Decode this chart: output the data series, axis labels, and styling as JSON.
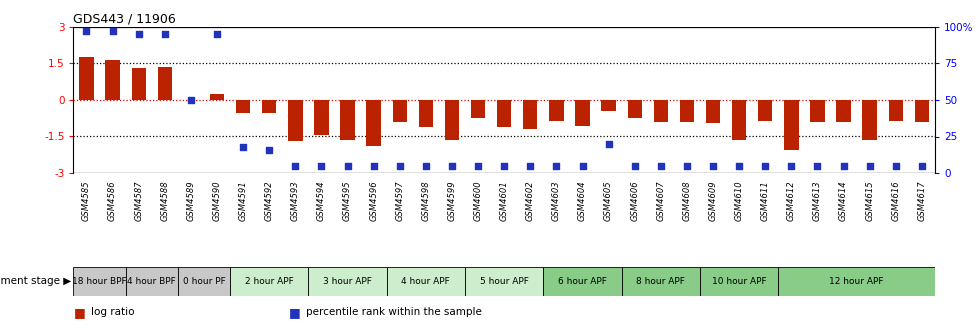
{
  "title": "GDS443 / 11906",
  "samples": [
    "GSM4585",
    "GSM4586",
    "GSM4587",
    "GSM4588",
    "GSM4589",
    "GSM4590",
    "GSM4591",
    "GSM4592",
    "GSM4593",
    "GSM4594",
    "GSM4595",
    "GSM4596",
    "GSM4597",
    "GSM4598",
    "GSM4599",
    "GSM4600",
    "GSM4601",
    "GSM4602",
    "GSM4603",
    "GSM4604",
    "GSM4605",
    "GSM4606",
    "GSM4607",
    "GSM4608",
    "GSM4609",
    "GSM4610",
    "GSM4611",
    "GSM4612",
    "GSM4613",
    "GSM4614",
    "GSM4615",
    "GSM4616",
    "GSM4617"
  ],
  "log_ratio": [
    1.75,
    1.65,
    1.3,
    1.35,
    0.0,
    0.25,
    -0.55,
    -0.55,
    -1.7,
    -1.45,
    -1.65,
    -1.9,
    -0.9,
    -1.1,
    -1.65,
    -0.75,
    -1.1,
    -1.2,
    -0.85,
    -1.05,
    -0.45,
    -0.75,
    -0.9,
    -0.9,
    -0.95,
    -1.65,
    -0.85,
    -2.05,
    -0.9,
    -0.9,
    -1.65,
    -0.85,
    -0.9
  ],
  "percentile": [
    97,
    97,
    95,
    95,
    50,
    95,
    18,
    16,
    5,
    5,
    5,
    5,
    5,
    5,
    5,
    5,
    5,
    5,
    5,
    5,
    20,
    5,
    5,
    5,
    5,
    5,
    5,
    5,
    5,
    5,
    5,
    5,
    5
  ],
  "stages": [
    {
      "label": "18 hour BPF",
      "start": 0,
      "end": 2,
      "color": "#c8c8c8"
    },
    {
      "label": "4 hour BPF",
      "start": 2,
      "end": 4,
      "color": "#c8c8c8"
    },
    {
      "label": "0 hour PF",
      "start": 4,
      "end": 6,
      "color": "#c8c8c8"
    },
    {
      "label": "2 hour APF",
      "start": 6,
      "end": 9,
      "color": "#cceecc"
    },
    {
      "label": "3 hour APF",
      "start": 9,
      "end": 12,
      "color": "#cceecc"
    },
    {
      "label": "4 hour APF",
      "start": 12,
      "end": 15,
      "color": "#cceecc"
    },
    {
      "label": "5 hour APF",
      "start": 15,
      "end": 18,
      "color": "#cceecc"
    },
    {
      "label": "6 hour APF",
      "start": 18,
      "end": 21,
      "color": "#88cc88"
    },
    {
      "label": "8 hour APF",
      "start": 21,
      "end": 24,
      "color": "#88cc88"
    },
    {
      "label": "10 hour APF",
      "start": 24,
      "end": 27,
      "color": "#88cc88"
    },
    {
      "label": "12 hour APF",
      "start": 27,
      "end": 33,
      "color": "#88cc88"
    }
  ],
  "bar_color": "#bb2200",
  "dot_color": "#2233bb",
  "ylim_left": [
    -3,
    3
  ],
  "ylim_right": [
    0,
    100
  ],
  "yticks_left": [
    -3,
    -1.5,
    0,
    1.5,
    3
  ],
  "yticks_right": [
    0,
    25,
    50,
    75,
    100
  ],
  "yticklabels_right": [
    "0",
    "25",
    "50",
    "75",
    "100%"
  ],
  "hlines_dotted": [
    -1.5,
    1.5
  ],
  "hline_zero_color": "#dd0000",
  "bar_width": 0.55,
  "legend_items": [
    {
      "color": "#bb2200",
      "label": "log ratio"
    },
    {
      "color": "#2233bb",
      "label": "percentile rank within the sample"
    }
  ],
  "dev_stage_label": "development stage ▶"
}
